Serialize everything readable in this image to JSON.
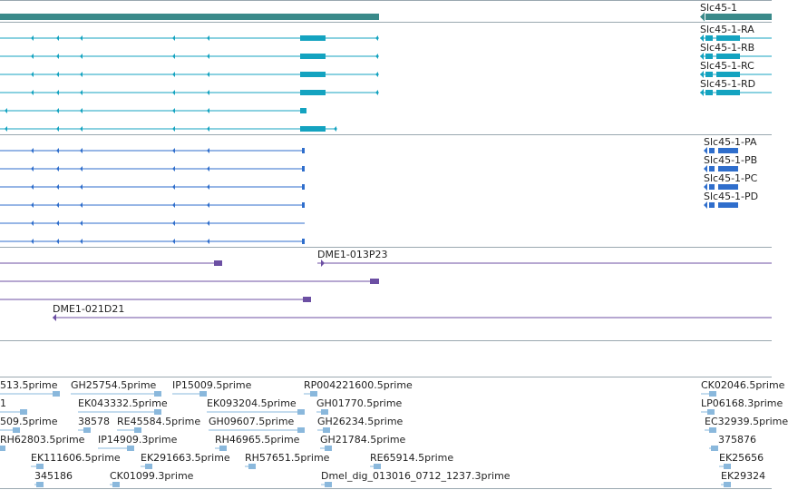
{
  "colors": {
    "gene": "#3a8a8a",
    "transcript_r": "#14a3c0",
    "transcript_p": "#2f6ecc",
    "clone": "#6c4fa3",
    "est": "#8ab8dc",
    "separator": "#9aa8b0",
    "label": "#222222"
  },
  "tracks": {
    "gene": {
      "name": "Slc45-1"
    },
    "transcripts_r": [
      "Slc45-1-RA",
      "Slc45-1-RB",
      "Slc45-1-RC",
      "Slc45-1-RD"
    ],
    "transcripts_p": [
      "Slc45-1-PA",
      "Slc45-1-PB",
      "Slc45-1-PC",
      "Slc45-1-PD"
    ],
    "clones": [
      "DME1-013P23",
      "DME1-021D21"
    ],
    "ests": [
      "513.5prime",
      "GH25754.5prime",
      "IP15009.5prime",
      "RP004221600.5prime",
      "CK02046.5prime",
      "1",
      "EK043332.5prime",
      "EK093204.5prime",
      "GH01770.5prime",
      "LP06168.3prime",
      "509.5prime",
      "38578",
      "RE45584.5prime",
      "GH09607.5prime",
      "GH26234.5prime",
      "EC32939.5prime",
      "RH62803.5prime",
      "IP14909.3prime",
      "RH46965.5prime",
      "GH21784.5prime",
      "375876",
      "EK111606.5prime",
      "EK291663.5prime",
      "RH57651.5prime",
      "RE65914.5prime",
      "EK25656",
      "345186",
      "CK01099.3prime",
      "Dmel_dig_013016_0712_1237.3prime",
      "EK29324"
    ]
  }
}
